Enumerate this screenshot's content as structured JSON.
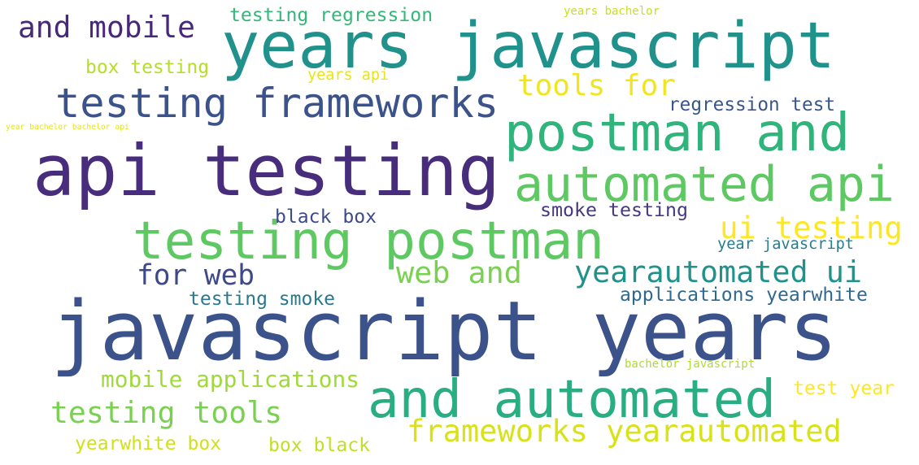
{
  "words": [
    {
      "text": "javascript years",
      "color": "#3b528b"
    },
    {
      "text": "api testing",
      "color": "#472d7b"
    },
    {
      "text": "years javascript",
      "color": "#21918c"
    },
    {
      "text": "testing postman",
      "color": "#5ec962"
    },
    {
      "text": "and automated",
      "color": "#28ae80"
    },
    {
      "text": "postman and",
      "color": "#2fb47c"
    },
    {
      "text": "automated api",
      "color": "#5ec962"
    },
    {
      "text": "testing frameworks",
      "color": "#3b528b"
    },
    {
      "text": "yearautomated ui",
      "color": "#21918c"
    },
    {
      "text": "testing tools",
      "color": "#7ad151"
    },
    {
      "text": "frameworks yearautomated",
      "color": "#d8e219"
    },
    {
      "text": "and mobile",
      "color": "#482878"
    },
    {
      "text": "for web",
      "color": "#3e4989"
    },
    {
      "text": "web and",
      "color": "#7ad151"
    },
    {
      "text": "ui testing",
      "color": "#fde725"
    },
    {
      "text": "tools for",
      "color": "#f1e51d"
    },
    {
      "text": "mobile applications",
      "color": "#a0da39"
    },
    {
      "text": "testing regression",
      "color": "#35b779"
    },
    {
      "text": "box testing",
      "color": "#b5de2b"
    },
    {
      "text": "regression test",
      "color": "#39568c"
    },
    {
      "text": "black box",
      "color": "#3e4a89"
    },
    {
      "text": "smoke testing",
      "color": "#443983"
    },
    {
      "text": "applications yearwhite",
      "color": "#31688e"
    },
    {
      "text": "testing smoke",
      "color": "#2a788e"
    },
    {
      "text": "year javascript",
      "color": "#287c8e"
    },
    {
      "text": "test year",
      "color": "#fde725"
    },
    {
      "text": "yearwhite box",
      "color": "#d0e11c"
    },
    {
      "text": "box black",
      "color": "#c2df23"
    },
    {
      "text": "years api",
      "color": "#e7e419"
    },
    {
      "text": "years bachelor",
      "color": "#c8e020"
    },
    {
      "text": "year bachelor bachelor api",
      "color": "#e5e419"
    },
    {
      "text": "bachelor javascript",
      "color": "#addc30"
    }
  ]
}
